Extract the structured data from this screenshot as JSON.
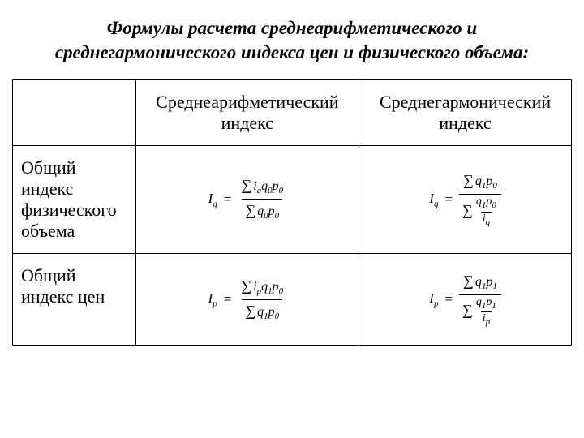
{
  "title": "Формулы расчета среднеарифметического и среднегармонического индекса цен и физического объема:",
  "headers": {
    "col1": "Среднеарифметический индекс",
    "col2": "Среднегармонический индекс"
  },
  "rows": {
    "r1_label": "Общий индекс физического объема",
    "r2_label": "Общий индекс цен"
  },
  "formulas": {
    "Iq_arith": {
      "left": "I",
      "left_sub": "q",
      "num_terms": [
        "i",
        "q",
        "p"
      ],
      "num_subs": [
        "q",
        "0",
        "0"
      ],
      "den_terms": [
        "q",
        "p"
      ],
      "den_subs": [
        "0",
        "0"
      ]
    },
    "Iq_harm": {
      "left": "I",
      "left_sub": "q",
      "num_terms": [
        "q",
        "p"
      ],
      "num_subs": [
        "1",
        "0"
      ],
      "den_small_num_terms": [
        "q",
        "p"
      ],
      "den_small_num_subs": [
        "1",
        "0"
      ],
      "den_small_den": "i",
      "den_small_den_sub": "q"
    },
    "Ip_arith": {
      "left": "I",
      "left_sub": "p",
      "num_terms": [
        "i",
        "q",
        "p"
      ],
      "num_subs": [
        "p",
        "1",
        "0"
      ],
      "den_terms": [
        "q",
        "p"
      ],
      "den_subs": [
        "1",
        "0"
      ]
    },
    "Ip_harm": {
      "left": "I",
      "left_sub": "p",
      "num_terms": [
        "q",
        "p"
      ],
      "num_subs": [
        "1",
        "1"
      ],
      "den_small_num_terms": [
        "q",
        "p"
      ],
      "den_small_num_subs": [
        "1",
        "1"
      ],
      "den_small_den": "i",
      "den_small_den_sub": "p"
    }
  },
  "styling": {
    "title_fontsize": 23,
    "header_fontsize": 22,
    "label_fontsize": 22,
    "formula_fontsize": 17,
    "background": "#ffffff",
    "border_color": "#000000",
    "text_color": "#000000"
  }
}
